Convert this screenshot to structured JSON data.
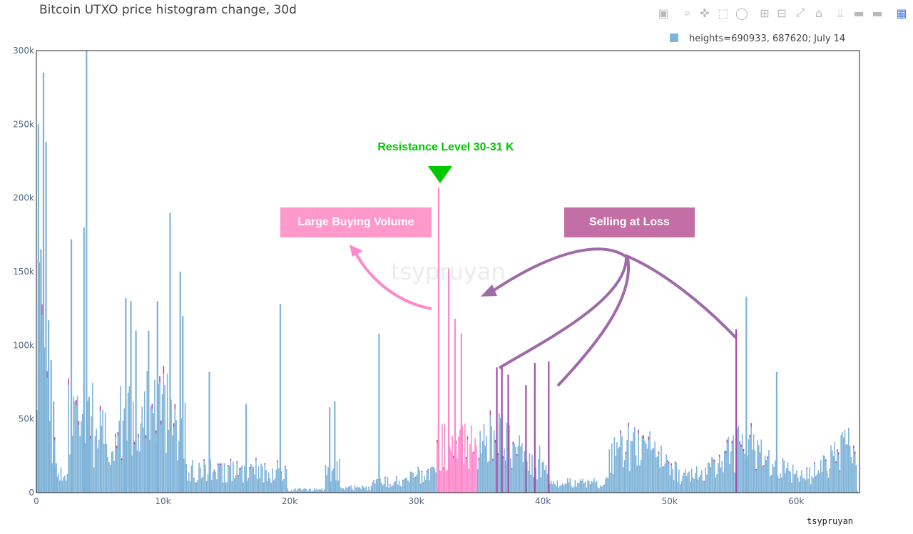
{
  "title": "Bitcoin UTXO price histogram change, 30d",
  "credit": "tsypruyan",
  "watermark": "tsypruyan",
  "toolbar": [
    {
      "name": "camera-icon",
      "label": "Download plot as a png"
    },
    {
      "name": "zoom-icon",
      "label": "Zoom"
    },
    {
      "name": "pan-icon",
      "label": "Pan"
    },
    {
      "name": "box-select-icon",
      "label": "Box Select"
    },
    {
      "name": "lasso-select-icon",
      "label": "Lasso Select"
    },
    {
      "name": "zoom-in-icon",
      "label": "Zoom in"
    },
    {
      "name": "zoom-out-icon",
      "label": "Zoom out"
    },
    {
      "name": "autoscale-icon",
      "label": "Autoscale"
    },
    {
      "name": "home-icon",
      "label": "Reset axes"
    },
    {
      "name": "spike-lines-icon",
      "label": "Toggle Spike Lines"
    },
    {
      "name": "hover-closest-icon",
      "label": "Show closest data on hover"
    },
    {
      "name": "hover-compare-icon",
      "label": "Compare data on hover"
    },
    {
      "name": "plotly-logo-icon",
      "label": "Produced with Plotly"
    }
  ],
  "annotations": {
    "resistance": "Resistance Level 30-31 K",
    "buying": "Large Buying Volume",
    "selling": "Selling at Loss"
  },
  "colors": {
    "bar": "#7fb3d8",
    "increase": "#a64ca6",
    "pink": "#ff88cc",
    "resistance": "#00c800",
    "buying_box": "#ff99cc",
    "selling_box": "#c46ea6",
    "selling_arrow": "#9e6aa8"
  },
  "chart_data": {
    "type": "bar",
    "title": "Bitcoin UTXO price histogram change, 30d",
    "xlabel": "",
    "ylabel": "",
    "xlim": [
      0,
      65000
    ],
    "ylim": [
      0,
      300000
    ],
    "xticks": [
      0,
      10000,
      20000,
      30000,
      40000,
      50000,
      60000
    ],
    "xtick_labels": [
      "0",
      "10k",
      "20k",
      "30k",
      "40k",
      "50k",
      "60k"
    ],
    "yticks": [
      0,
      50000,
      100000,
      150000,
      200000,
      250000,
      300000
    ],
    "ytick_labels": [
      "0",
      "50k",
      "100k",
      "150k",
      "200k",
      "250k",
      "300k"
    ],
    "legend": {
      "entries": [
        "heights=690933, 687620; July 14"
      ],
      "placement": "top-right"
    },
    "grid": false,
    "series": [
      {
        "name": "heights=690933, 687620; July 14",
        "x": [
          100,
          300,
          500,
          700,
          900,
          1100,
          1300,
          1500,
          2700,
          3700,
          3900,
          4100,
          7000,
          7400,
          7800,
          8800,
          9500,
          10500,
          11300,
          11500,
          13600,
          16500,
          19200,
          23100,
          23500,
          27000,
          31700,
          32500,
          33000,
          33500,
          36300,
          36700,
          37200,
          38600,
          39300,
          40400,
          55200,
          56000,
          58400
        ],
        "values": [
          250000,
          165000,
          285000,
          238000,
          117000,
          90000,
          62000,
          20000,
          172000,
          180000,
          300000,
          65000,
          132000,
          130000,
          110000,
          110000,
          130000,
          190000,
          150000,
          120000,
          82000,
          60000,
          128000,
          58000,
          62000,
          108000,
          207000,
          152000,
          118000,
          108000,
          85000,
          86000,
          80000,
          73000,
          88000,
          89000,
          111000,
          133000,
          82000
        ]
      }
    ]
  }
}
